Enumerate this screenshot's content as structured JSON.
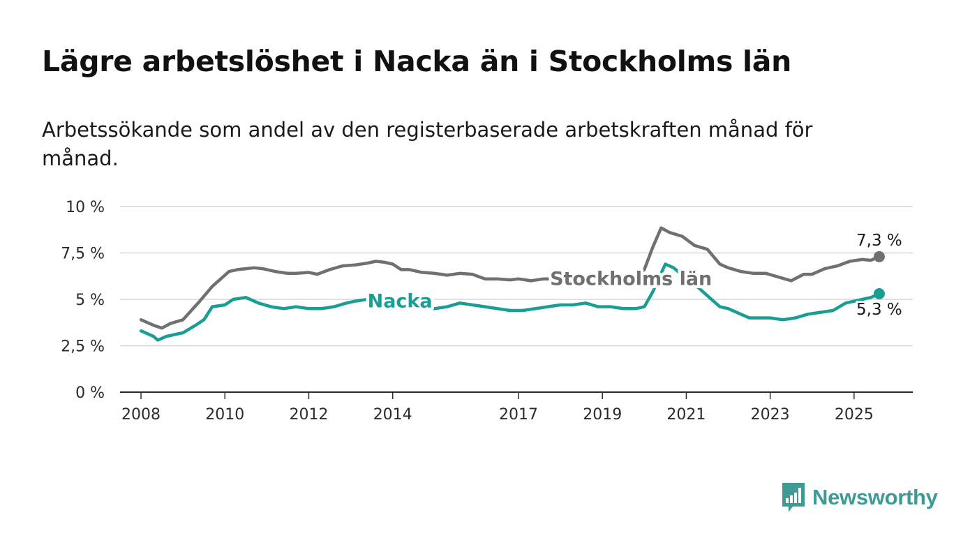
{
  "header": {
    "title": "Lägre arbetslöshet i Nacka än i Stockholms län",
    "subtitle": "Arbetssökande som andel av den registerbaserade arbetskraften månad för månad."
  },
  "brand": {
    "name": "Newsworthy",
    "icon": "newsworthy-logo-icon",
    "color": "#3d9a95"
  },
  "chart_data": {
    "type": "line",
    "title": "Lägre arbetslöshet i Nacka än i Stockholms län",
    "subtitle": "Arbetssökande som andel av den registerbaserade arbetskraften månad för månad.",
    "xlabel": "",
    "ylabel": "",
    "xlim": [
      2007.5,
      2026.4
    ],
    "ylim": [
      0,
      10
    ],
    "grid": true,
    "legend": "inline labels",
    "y_ticks": [
      {
        "value": 0,
        "label": "0 %"
      },
      {
        "value": 2.5,
        "label": "2,5 %"
      },
      {
        "value": 5,
        "label": "5 %"
      },
      {
        "value": 7.5,
        "label": "7,5 %"
      },
      {
        "value": 10,
        "label": "10 %"
      }
    ],
    "x_ticks": [
      {
        "value": 2008,
        "label": "2008"
      },
      {
        "value": 2010,
        "label": "2010"
      },
      {
        "value": 2012,
        "label": "2012"
      },
      {
        "value": 2014,
        "label": "2014"
      },
      {
        "value": 2017,
        "label": "2017"
      },
      {
        "value": 2019,
        "label": "2019"
      },
      {
        "value": 2021,
        "label": "2021"
      },
      {
        "value": 2023,
        "label": "2023"
      },
      {
        "value": 2025,
        "label": "2025"
      }
    ],
    "series": [
      {
        "name": "Stockholms län",
        "color": "#707070",
        "label_at": {
          "x": 2017.75,
          "y": 6.15
        },
        "end_label": "7,3 %",
        "x": [
          2008.0,
          2008.3,
          2008.5,
          2008.7,
          2009.0,
          2009.2,
          2009.4,
          2009.7,
          2009.9,
          2010.1,
          2010.3,
          2010.5,
          2010.7,
          2010.9,
          2011.2,
          2011.5,
          2011.7,
          2012.0,
          2012.2,
          2012.5,
          2012.8,
          2013.1,
          2013.4,
          2013.6,
          2013.8,
          2014.0,
          2014.2,
          2014.4,
          2014.7,
          2015.0,
          2015.3,
          2015.6,
          2015.9,
          2016.2,
          2016.5,
          2016.8,
          2017.0,
          2017.3,
          2017.6,
          2017.8,
          2018.0,
          2018.3,
          2018.6,
          2018.9,
          2019.2,
          2019.5,
          2019.8,
          2020.0,
          2020.2,
          2020.4,
          2020.6,
          2020.9,
          2021.2,
          2021.5,
          2021.8,
          2022.0,
          2022.3,
          2022.6,
          2022.9,
          2023.2,
          2023.5,
          2023.8,
          2024.0,
          2024.3,
          2024.6,
          2024.9,
          2025.2,
          2025.4,
          2025.6
        ],
        "y": [
          3.9,
          3.6,
          3.45,
          3.7,
          3.9,
          4.4,
          4.9,
          5.7,
          6.1,
          6.5,
          6.6,
          6.65,
          6.7,
          6.65,
          6.5,
          6.4,
          6.4,
          6.45,
          6.35,
          6.6,
          6.8,
          6.85,
          6.95,
          7.05,
          7.0,
          6.9,
          6.6,
          6.6,
          6.45,
          6.4,
          6.3,
          6.4,
          6.35,
          6.1,
          6.1,
          6.05,
          6.1,
          6.0,
          6.1,
          6.1,
          6.1,
          6.1,
          6.0,
          6.05,
          6.05,
          6.0,
          6.2,
          6.6,
          7.8,
          8.85,
          8.6,
          8.4,
          7.9,
          7.7,
          6.9,
          6.7,
          6.5,
          6.4,
          6.4,
          6.2,
          6.0,
          6.35,
          6.35,
          6.65,
          6.8,
          7.05,
          7.15,
          7.1,
          7.3
        ]
      },
      {
        "name": "Nacka",
        "color": "#1a9e94",
        "label_at": {
          "x": 2013.4,
          "y": 4.95
        },
        "end_label": "5,3 %",
        "x": [
          2008.0,
          2008.3,
          2008.4,
          2008.6,
          2009.0,
          2009.3,
          2009.5,
          2009.7,
          2010.0,
          2010.2,
          2010.5,
          2010.8,
          2011.1,
          2011.4,
          2011.7,
          2012.0,
          2012.3,
          2012.6,
          2012.9,
          2013.1,
          2013.4,
          2013.7,
          2014.0,
          2014.3,
          2014.6,
          2015.0,
          2015.3,
          2015.6,
          2015.9,
          2016.2,
          2016.5,
          2016.8,
          2017.1,
          2017.4,
          2017.7,
          2018.0,
          2018.3,
          2018.6,
          2018.9,
          2019.2,
          2019.5,
          2019.8,
          2020.0,
          2020.2,
          2020.5,
          2020.7,
          2021.0,
          2021.3,
          2021.5,
          2021.8,
          2022.0,
          2022.3,
          2022.5,
          2022.8,
          2023.0,
          2023.3,
          2023.6,
          2023.9,
          2024.2,
          2024.5,
          2024.8,
          2025.0,
          2025.2,
          2025.4,
          2025.6
        ],
        "y": [
          3.3,
          3.0,
          2.8,
          3.0,
          3.2,
          3.6,
          3.9,
          4.6,
          4.7,
          5.0,
          5.1,
          4.8,
          4.6,
          4.5,
          4.6,
          4.5,
          4.5,
          4.6,
          4.8,
          4.9,
          5.0,
          5.0,
          4.9,
          4.7,
          4.5,
          4.5,
          4.6,
          4.8,
          4.7,
          4.6,
          4.5,
          4.4,
          4.4,
          4.5,
          4.6,
          4.7,
          4.7,
          4.8,
          4.6,
          4.6,
          4.5,
          4.5,
          4.6,
          5.4,
          6.9,
          6.7,
          6.1,
          5.6,
          5.2,
          4.6,
          4.5,
          4.2,
          4.0,
          4.0,
          4.0,
          3.9,
          4.0,
          4.2,
          4.3,
          4.4,
          4.8,
          4.9,
          5.0,
          5.1,
          5.3
        ]
      }
    ]
  }
}
